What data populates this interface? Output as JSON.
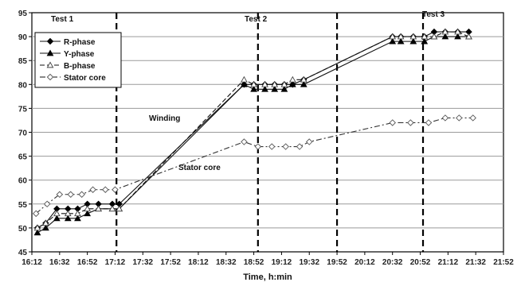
{
  "chart_data": {
    "type": "line",
    "xlabel": "Time, h:min",
    "ylabel": "",
    "ylim": [
      45,
      95
    ],
    "y_ticks": [
      "45",
      "50",
      "55",
      "60",
      "65",
      "70",
      "75",
      "80",
      "85",
      "90",
      "95"
    ],
    "x_range_minutes": [
      972,
      1312
    ],
    "x_ticks": [
      "16:12",
      "16:32",
      "16:52",
      "17:12",
      "17:32",
      "17:52",
      "18:12",
      "18:32",
      "18:52",
      "19:12",
      "19:32",
      "19:52",
      "20:12",
      "20:32",
      "20:52",
      "21:12",
      "21:32",
      "21:52"
    ],
    "grid": "horizontal",
    "legend_position": "top-left",
    "separators_minutes": [
      1033,
      1135,
      1192,
      1254
    ],
    "annotations": [
      {
        "text": "Test 1"
      },
      {
        "text": "Test 2"
      },
      {
        "text": "Test 3"
      },
      {
        "text": "Winding"
      },
      {
        "text": "Stator core"
      }
    ],
    "series": [
      {
        "name": "R-phase",
        "marker": "diamond-filled",
        "dash": "solid",
        "x": [
          "16:16",
          "16:22",
          "16:30",
          "16:38",
          "16:45",
          "16:52",
          "17:00",
          "17:10",
          "17:15",
          "18:45",
          "18:52",
          "19:00",
          "19:07",
          "19:14",
          "19:20",
          "19:28",
          "20:32",
          "20:38",
          "20:47",
          "20:55",
          "21:02",
          "21:10",
          "21:19",
          "21:27"
        ],
        "y": [
          50,
          51,
          54,
          54,
          54,
          55,
          55,
          55,
          55,
          80,
          80,
          80,
          80,
          80,
          80,
          81,
          90,
          90,
          90,
          90,
          91,
          91,
          91,
          91
        ]
      },
      {
        "name": "Y-phase",
        "marker": "triangle-filled",
        "dash": "solid",
        "x": [
          "16:16",
          "16:22",
          "16:30",
          "16:38",
          "16:45",
          "16:52",
          "17:00",
          "17:10",
          "17:15",
          "18:45",
          "18:52",
          "19:00",
          "19:07",
          "19:14",
          "19:20",
          "19:28",
          "20:32",
          "20:38",
          "20:47",
          "20:55",
          "21:02",
          "21:10",
          "21:19",
          "21:27"
        ],
        "y": [
          49,
          50,
          52,
          52,
          52,
          53,
          54,
          54,
          54,
          80,
          79,
          79,
          79,
          79,
          80,
          80,
          89,
          89,
          89,
          89,
          90,
          90,
          90,
          90
        ]
      },
      {
        "name": "B-phase",
        "marker": "triangle-open",
        "dash": "dashed",
        "x": [
          "16:16",
          "16:22",
          "16:30",
          "16:38",
          "16:45",
          "16:52",
          "17:00",
          "17:10",
          "17:15",
          "18:45",
          "18:52",
          "19:00",
          "19:07",
          "19:14",
          "19:20",
          "19:28",
          "20:32",
          "20:38",
          "20:47",
          "20:55",
          "21:02",
          "21:10",
          "21:19",
          "21:27"
        ],
        "y": [
          50,
          51,
          53,
          53,
          53,
          54,
          54,
          54,
          54,
          81,
          80,
          80,
          80,
          80,
          81,
          81,
          90,
          90,
          90,
          90,
          90,
          91,
          91,
          90
        ]
      },
      {
        "name": "Stator core",
        "marker": "diamond-open",
        "dash": "dashdot",
        "x": [
          "16:15",
          "16:23",
          "16:32",
          "16:40",
          "16:48",
          "16:56",
          "17:05",
          "17:12",
          "18:45",
          "18:55",
          "19:05",
          "19:15",
          "19:25",
          "19:32",
          "20:32",
          "20:45",
          "20:58",
          "21:10",
          "21:20",
          "21:30"
        ],
        "y": [
          53,
          55,
          57,
          57,
          57,
          58,
          58,
          58,
          68,
          67,
          67,
          67,
          67,
          68,
          72,
          72,
          72,
          73,
          73,
          73
        ]
      }
    ]
  }
}
